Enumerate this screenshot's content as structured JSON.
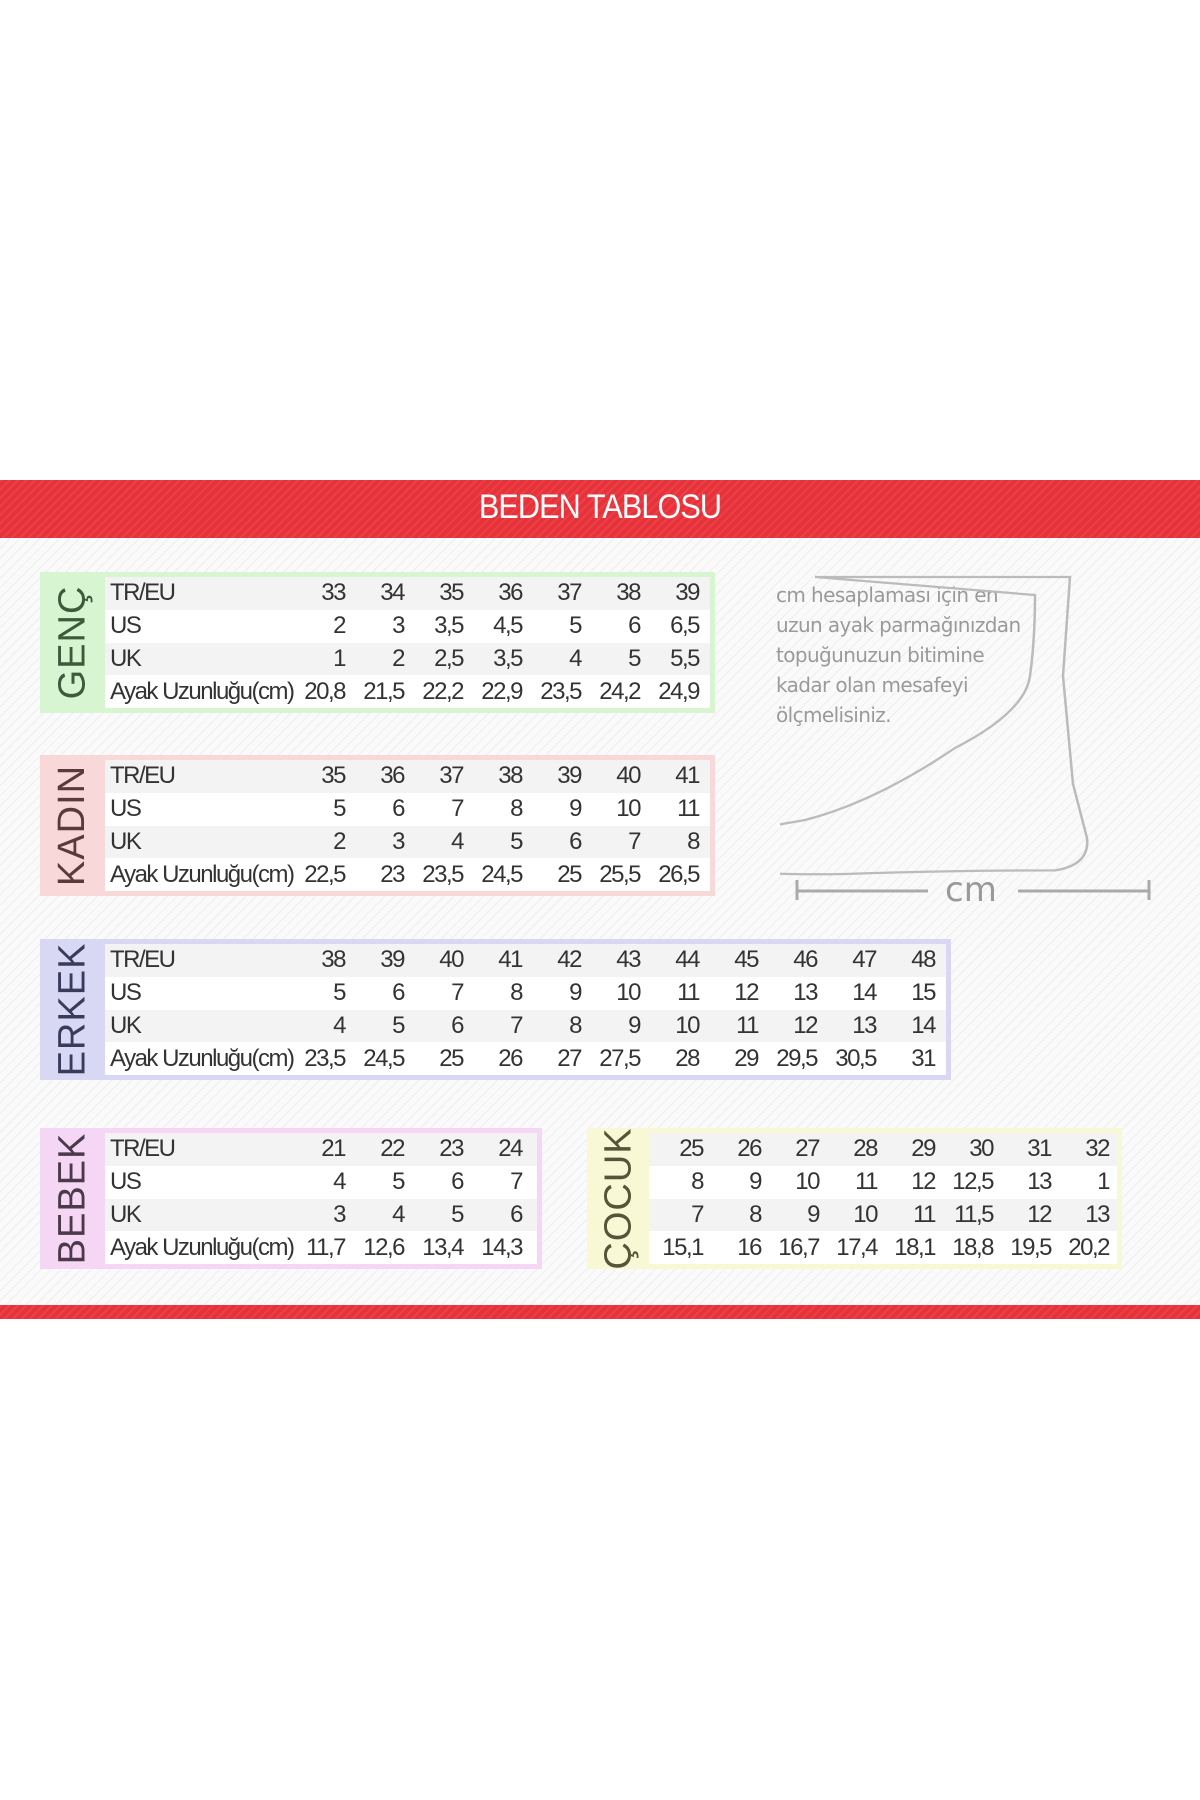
{
  "title": "BEDEN TABLOSU",
  "colors": {
    "header": "#e8323a",
    "genc": "#d8f5d2",
    "kadin": "#f8d8d8",
    "erkek": "#d8d8f5",
    "bebek": "#f5d6f5",
    "cocuk": "#f8f8d4"
  },
  "info": {
    "text": "cm hesaplaması için en uzun ayak parmağınızdan topuğunuzun bitimine kadar olan mesafeyi ölçmelisiniz.",
    "cm_label": "cm",
    "icon": "foot-outline-icon"
  },
  "tables": [
    {
      "id": "genc",
      "label": "GENÇ",
      "rows": [
        {
          "label": "TR/EU",
          "values": [
            "33",
            "34",
            "35",
            "36",
            "37",
            "38",
            "39"
          ]
        },
        {
          "label": "US",
          "values": [
            "2",
            "3",
            "3,5",
            "4,5",
            "5",
            "6",
            "6,5"
          ]
        },
        {
          "label": "UK",
          "values": [
            "1",
            "2",
            "2,5",
            "3,5",
            "4",
            "5",
            "5,5"
          ]
        },
        {
          "label": "Ayak Uzunluğu(cm)",
          "values": [
            "20,8",
            "21,5",
            "22,2",
            "22,9",
            "23,5",
            "24,2",
            "24,9"
          ]
        }
      ]
    },
    {
      "id": "kadin",
      "label": "KADIN",
      "rows": [
        {
          "label": "TR/EU",
          "values": [
            "35",
            "36",
            "37",
            "38",
            "39",
            "40",
            "41"
          ]
        },
        {
          "label": "US",
          "values": [
            "5",
            "6",
            "7",
            "8",
            "9",
            "10",
            "11"
          ]
        },
        {
          "label": "UK",
          "values": [
            "2",
            "3",
            "4",
            "5",
            "6",
            "7",
            "8"
          ]
        },
        {
          "label": "Ayak Uzunluğu(cm)",
          "values": [
            "22,5",
            "23",
            "23,5",
            "24,5",
            "25",
            "25,5",
            "26,5"
          ]
        }
      ]
    },
    {
      "id": "erkek",
      "label": "ERKEK",
      "rows": [
        {
          "label": "TR/EU",
          "values": [
            "38",
            "39",
            "40",
            "41",
            "42",
            "43",
            "44",
            "45",
            "46",
            "47",
            "48"
          ]
        },
        {
          "label": "US",
          "values": [
            "5",
            "6",
            "7",
            "8",
            "9",
            "10",
            "11",
            "12",
            "13",
            "14",
            "15"
          ]
        },
        {
          "label": "UK",
          "values": [
            "4",
            "5",
            "6",
            "7",
            "8",
            "9",
            "10",
            "11",
            "12",
            "13",
            "14"
          ]
        },
        {
          "label": "Ayak Uzunluğu(cm)",
          "values": [
            "23,5",
            "24,5",
            "25",
            "26",
            "27",
            "27,5",
            "28",
            "29",
            "29,5",
            "30,5",
            "31"
          ]
        }
      ]
    },
    {
      "id": "bebek",
      "label": "BEBEK",
      "rows": [
        {
          "label": "TR/EU",
          "values": [
            "21",
            "22",
            "23",
            "24"
          ]
        },
        {
          "label": "US",
          "values": [
            "4",
            "5",
            "6",
            "7"
          ]
        },
        {
          "label": "UK",
          "values": [
            "3",
            "4",
            "5",
            "6"
          ]
        },
        {
          "label": "Ayak Uzunluğu(cm)",
          "values": [
            "11,7",
            "12,6",
            "13,4",
            "14,3"
          ]
        }
      ]
    },
    {
      "id": "cocuk",
      "label": "ÇOCUK",
      "rows": [
        {
          "values": [
            "25",
            "26",
            "27",
            "28",
            "29",
            "30",
            "31",
            "32"
          ]
        },
        {
          "values": [
            "8",
            "9",
            "10",
            "11",
            "12",
            "12,5",
            "13",
            "1"
          ]
        },
        {
          "values": [
            "7",
            "8",
            "9",
            "10",
            "11",
            "11,5",
            "12",
            "13"
          ]
        },
        {
          "values": [
            "15,1",
            "16",
            "16,7",
            "17,4",
            "18,1",
            "18,8",
            "19,5",
            "20,2"
          ]
        }
      ]
    }
  ]
}
